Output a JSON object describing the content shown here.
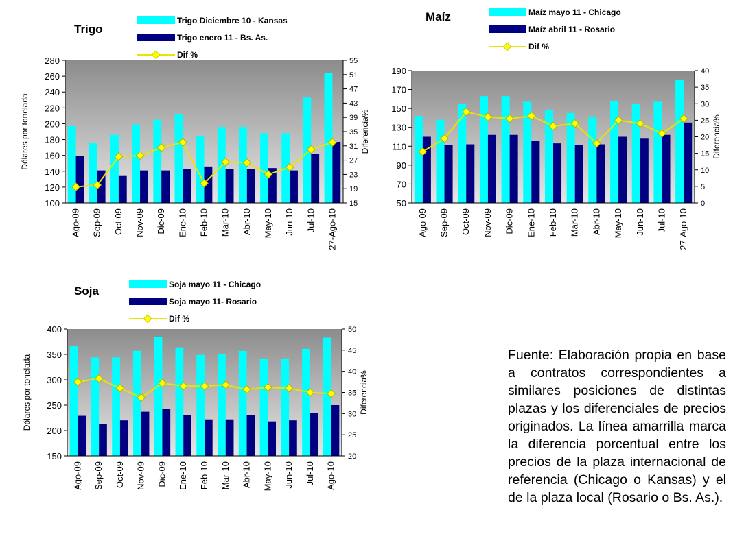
{
  "chart_data": [
    {
      "type": "bar",
      "title": "Trigo",
      "categories": [
        "Ago-09",
        "Sep-09",
        "Oct-09",
        "Nov-09",
        "Dic-09",
        "Ene-10",
        "Feb-10",
        "Mar-10",
        "Abr-10",
        "May-10",
        "Jun-10",
        "Jul-10",
        "27-Ago-10"
      ],
      "ylabel": "Dólares por tonelada",
      "y2label": "Diferencia%",
      "ylim": [
        100,
        280
      ],
      "yticks": [
        100,
        120,
        140,
        160,
        180,
        200,
        220,
        240,
        260,
        280
      ],
      "y2lim": [
        15,
        55
      ],
      "y2ticks": [
        15,
        19,
        23,
        27,
        31,
        35,
        39,
        43,
        47,
        51,
        55
      ],
      "series": [
        {
          "name": "Trigo Diciembre 10 - Kansas",
          "color": "#00ffff",
          "values": [
            197,
            176,
            186,
            199,
            205,
            212,
            184,
            196,
            196,
            188,
            188,
            233,
            264
          ]
        },
        {
          "name": "Trigo enero 11 - Bs. As.",
          "color": "#000080",
          "values": [
            159,
            141,
            134,
            141,
            141,
            143,
            146,
            143,
            143,
            144,
            141,
            162,
            177
          ]
        },
        {
          "name": "Dif %",
          "color": "#ffff00",
          "axis": "y2",
          "values": [
            19.5,
            20,
            28,
            28.3,
            30.5,
            32,
            20.5,
            26.5,
            26.3,
            23,
            25,
            30,
            32
          ]
        }
      ]
    },
    {
      "type": "bar",
      "title": "Maíz",
      "categories": [
        "Ago-09",
        "Sep-09",
        "Oct-09",
        "Nov-09",
        "Dic-09",
        "Ene-10",
        "Feb-10",
        "Mar-10",
        "Abr-10",
        "May-10",
        "Jun-10",
        "Jul-10",
        "27-Ago-10"
      ],
      "ylabel": "",
      "y2label": "Diferencia%",
      "ylim": [
        50,
        190
      ],
      "yticks": [
        50,
        70,
        90,
        110,
        130,
        150,
        170,
        190
      ],
      "y2lim": [
        0,
        40
      ],
      "y2ticks": [
        0,
        5,
        10,
        15,
        20,
        25,
        30,
        35,
        40
      ],
      "series": [
        {
          "name": "Maíz mayo 11 - Chicago",
          "color": "#00ffff",
          "values": [
            142,
            138,
            155,
            163,
            163,
            157,
            148,
            145,
            141,
            158,
            155,
            157,
            180
          ]
        },
        {
          "name": "Maíz abril 11 - Rosario",
          "color": "#000080",
          "values": [
            120,
            111,
            112,
            122,
            122,
            116,
            113,
            111,
            112,
            120,
            118,
            122,
            135
          ]
        },
        {
          "name": "Dif %",
          "color": "#ffff00",
          "axis": "y2",
          "values": [
            15.5,
            19.5,
            27.5,
            26,
            25.5,
            26.3,
            23.2,
            24,
            18,
            25,
            24,
            21,
            25.5
          ]
        }
      ]
    },
    {
      "type": "bar",
      "title": "Soja",
      "categories": [
        "Ago-09",
        "Sep-09",
        "Oct-09",
        "Nov-09",
        "Dic-09",
        "Ene-10",
        "Feb-10",
        "Mar-10",
        "Abr-10",
        "May-10",
        "Jun-10",
        "Jul-10",
        "Ago-10"
      ],
      "ylabel": "Dólares por tonelada",
      "y2label": "Diferencia%",
      "ylim": [
        150,
        400
      ],
      "yticks": [
        150,
        200,
        250,
        300,
        350,
        400
      ],
      "y2lim": [
        20,
        50
      ],
      "y2ticks": [
        20,
        25,
        30,
        35,
        40,
        45,
        50
      ],
      "series": [
        {
          "name": "Soja mayo 11 - Chicago",
          "color": "#00ffff",
          "values": [
            366,
            344,
            344,
            357,
            385,
            364,
            349,
            351,
            357,
            342,
            342,
            361,
            383
          ]
        },
        {
          "name": "Soja mayo 11- Rosario",
          "color": "#000080",
          "values": [
            229,
            213,
            220,
            237,
            242,
            230,
            222,
            222,
            230,
            218,
            220,
            235,
            250
          ]
        },
        {
          "name": "Dif %",
          "color": "#ffff00",
          "axis": "y2",
          "values": [
            37.5,
            38.3,
            36,
            33.8,
            37.2,
            36.5,
            36.5,
            36.8,
            35.7,
            36.2,
            36,
            35,
            34.7
          ]
        }
      ]
    }
  ],
  "note": "Fuente: Elaboración propia en base a contratos correspondientes a similares posiciones de distintas plazas y los diferenciales de precios originados. La línea amarrilla marca la diferencia porcentual entre los precios de la plaza internacional de referencia (Chicago o Kansas) y el de la plaza local (Rosario o Bs. As.)."
}
